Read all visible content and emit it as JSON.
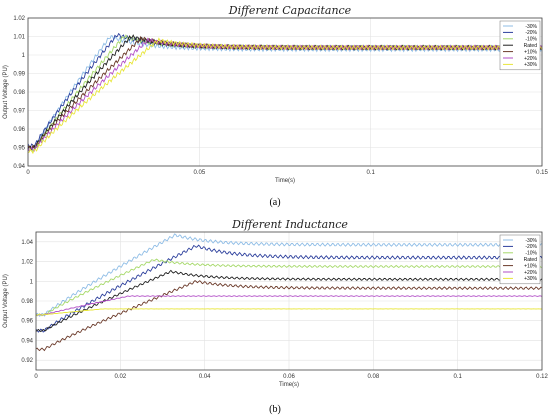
{
  "chart_data": [
    {
      "type": "line",
      "title": "Different Capacitance",
      "caption": "(a)",
      "xlabel": "Time(s)",
      "ylabel": "Output Voltage (PU)",
      "xlim": [
        0,
        0.15
      ],
      "ylim": [
        0.94,
        1.02
      ],
      "xticks": [
        "0",
        "0.05",
        "0.1",
        "0.15"
      ],
      "yticks": [
        "0.94",
        "0.95",
        "0.96",
        "0.97",
        "0.98",
        "0.99",
        "1",
        "1.01",
        "1.02"
      ],
      "grid": true,
      "legend_position": "top-right",
      "series": [
        {
          "name": "-30%",
          "color": "#8fbde6",
          "start": 0.95,
          "peak_t": 0.024,
          "peak": 1.01,
          "final": 1.003
        },
        {
          "name": "-20%",
          "color": "#2c3f9c",
          "start": 0.951,
          "peak_t": 0.026,
          "peak": 1.011,
          "final": 1.004
        },
        {
          "name": "-10%",
          "color": "#a6d96a",
          "start": 0.949,
          "peak_t": 0.028,
          "peak": 1.01,
          "final": 1.004
        },
        {
          "name": "Rated",
          "color": "#1f1f1f",
          "start": 0.95,
          "peak_t": 0.03,
          "peak": 1.01,
          "final": 1.004
        },
        {
          "name": "+10%",
          "color": "#6b3a2a",
          "start": 0.95,
          "peak_t": 0.033,
          "peak": 1.009,
          "final": 1.004
        },
        {
          "name": "+20%",
          "color": "#b24fc7",
          "start": 0.949,
          "peak_t": 0.035,
          "peak": 1.008,
          "final": 1.004
        },
        {
          "name": "+30%",
          "color": "#e8e63a",
          "start": 0.948,
          "peak_t": 0.038,
          "peak": 1.008,
          "final": 1.004
        }
      ]
    },
    {
      "type": "line",
      "title": "Different Inductance",
      "caption": "(b)",
      "xlabel": "Time(s)",
      "ylabel": "Output Voltage (PU)",
      "xlim": [
        0,
        0.12
      ],
      "ylim": [
        0.91,
        1.05
      ],
      "xticks": [
        "0",
        "0.02",
        "0.04",
        "0.06",
        "0.08",
        "0.1",
        "0.12"
      ],
      "yticks": [
        "0.92",
        "0.94",
        "0.96",
        "0.98",
        "1",
        "1.02",
        "1.04"
      ],
      "grid": true,
      "legend_position": "top-right",
      "series": [
        {
          "name": "-30%",
          "color": "#8fbde6",
          "start": 0.966,
          "peak_t": 0.033,
          "peak": 1.047,
          "final": 1.037
        },
        {
          "name": "-20%",
          "color": "#2c3f9c",
          "start": 0.95,
          "peak_t": 0.038,
          "peak": 1.036,
          "final": 1.024
        },
        {
          "name": "-10%",
          "color": "#a6d96a",
          "start": 0.966,
          "peak_t": 0.028,
          "peak": 1.022,
          "final": 1.015
        },
        {
          "name": "Rated",
          "color": "#1f1f1f",
          "start": 0.95,
          "peak_t": 0.032,
          "peak": 1.01,
          "final": 1.002
        },
        {
          "name": "+10%",
          "color": "#6b3a2a",
          "start": 0.931,
          "peak_t": 0.038,
          "peak": 1.0,
          "final": 0.993
        },
        {
          "name": "+20%",
          "color": "#b24fc7",
          "start": 0.966,
          "peak_t": 0.022,
          "peak": 0.985,
          "final": 0.985
        },
        {
          "name": "+30%",
          "color": "#e8e63a",
          "start": 0.966,
          "peak_t": 0.016,
          "peak": 0.972,
          "final": 0.972
        }
      ]
    }
  ]
}
